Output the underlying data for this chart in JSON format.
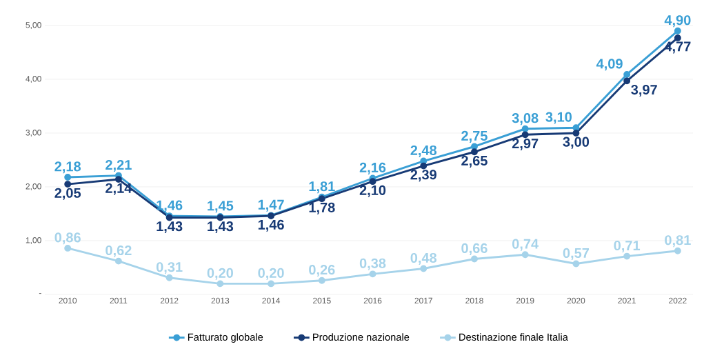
{
  "chart_data": {
    "type": "line",
    "categories": [
      "2010",
      "2011",
      "2012",
      "2013",
      "2014",
      "2015",
      "2016",
      "2017",
      "2018",
      "2019",
      "2020",
      "2021",
      "2022"
    ],
    "series": [
      {
        "name": "Fatturato globale",
        "color": "#3a9fd5",
        "values": [
          2.18,
          2.21,
          1.46,
          1.45,
          1.47,
          1.81,
          2.16,
          2.48,
          2.75,
          3.08,
          3.1,
          4.09,
          4.9
        ],
        "value_labels": [
          "2,18",
          "2,21",
          "1,46",
          "1,45",
          "1,47",
          "1,81",
          "2,16",
          "2,48",
          "2,75",
          "3,08",
          "3,10",
          "4,09",
          "4,90"
        ]
      },
      {
        "name": "Produzione nazionale",
        "color": "#173a75",
        "values": [
          2.05,
          2.14,
          1.43,
          1.43,
          1.46,
          1.78,
          2.1,
          2.39,
          2.65,
          2.97,
          3.0,
          3.97,
          4.77
        ],
        "value_labels": [
          "2,05",
          "2,14",
          "1,43",
          "1,43",
          "1,46",
          "1,78",
          "2,10",
          "2,39",
          "2,65",
          "2,97",
          "3,00",
          "3,97",
          "4,77"
        ]
      },
      {
        "name": "Destinazione finale Italia",
        "color": "#a6d3ea",
        "values": [
          0.86,
          0.62,
          0.31,
          0.2,
          0.2,
          0.26,
          0.38,
          0.48,
          0.66,
          0.74,
          0.57,
          0.71,
          0.81
        ],
        "value_labels": [
          "0,86",
          "0,62",
          "0,31",
          "0,20",
          "0,20",
          "0,26",
          "0,38",
          "0,48",
          "0,66",
          "0,74",
          "0,57",
          "0,71",
          "0,81"
        ]
      }
    ],
    "ylim": [
      0,
      5
    ],
    "yticks": [
      {
        "value": 0,
        "label": "-"
      },
      {
        "value": 1,
        "label": "1,00"
      },
      {
        "value": 2,
        "label": "2,00"
      },
      {
        "value": 3,
        "label": "3,00"
      },
      {
        "value": 4,
        "label": "4,00"
      },
      {
        "value": 5,
        "label": "5,00"
      }
    ],
    "grid": "y",
    "legend": "bottom",
    "marker": "circle",
    "line_style": "solid"
  }
}
